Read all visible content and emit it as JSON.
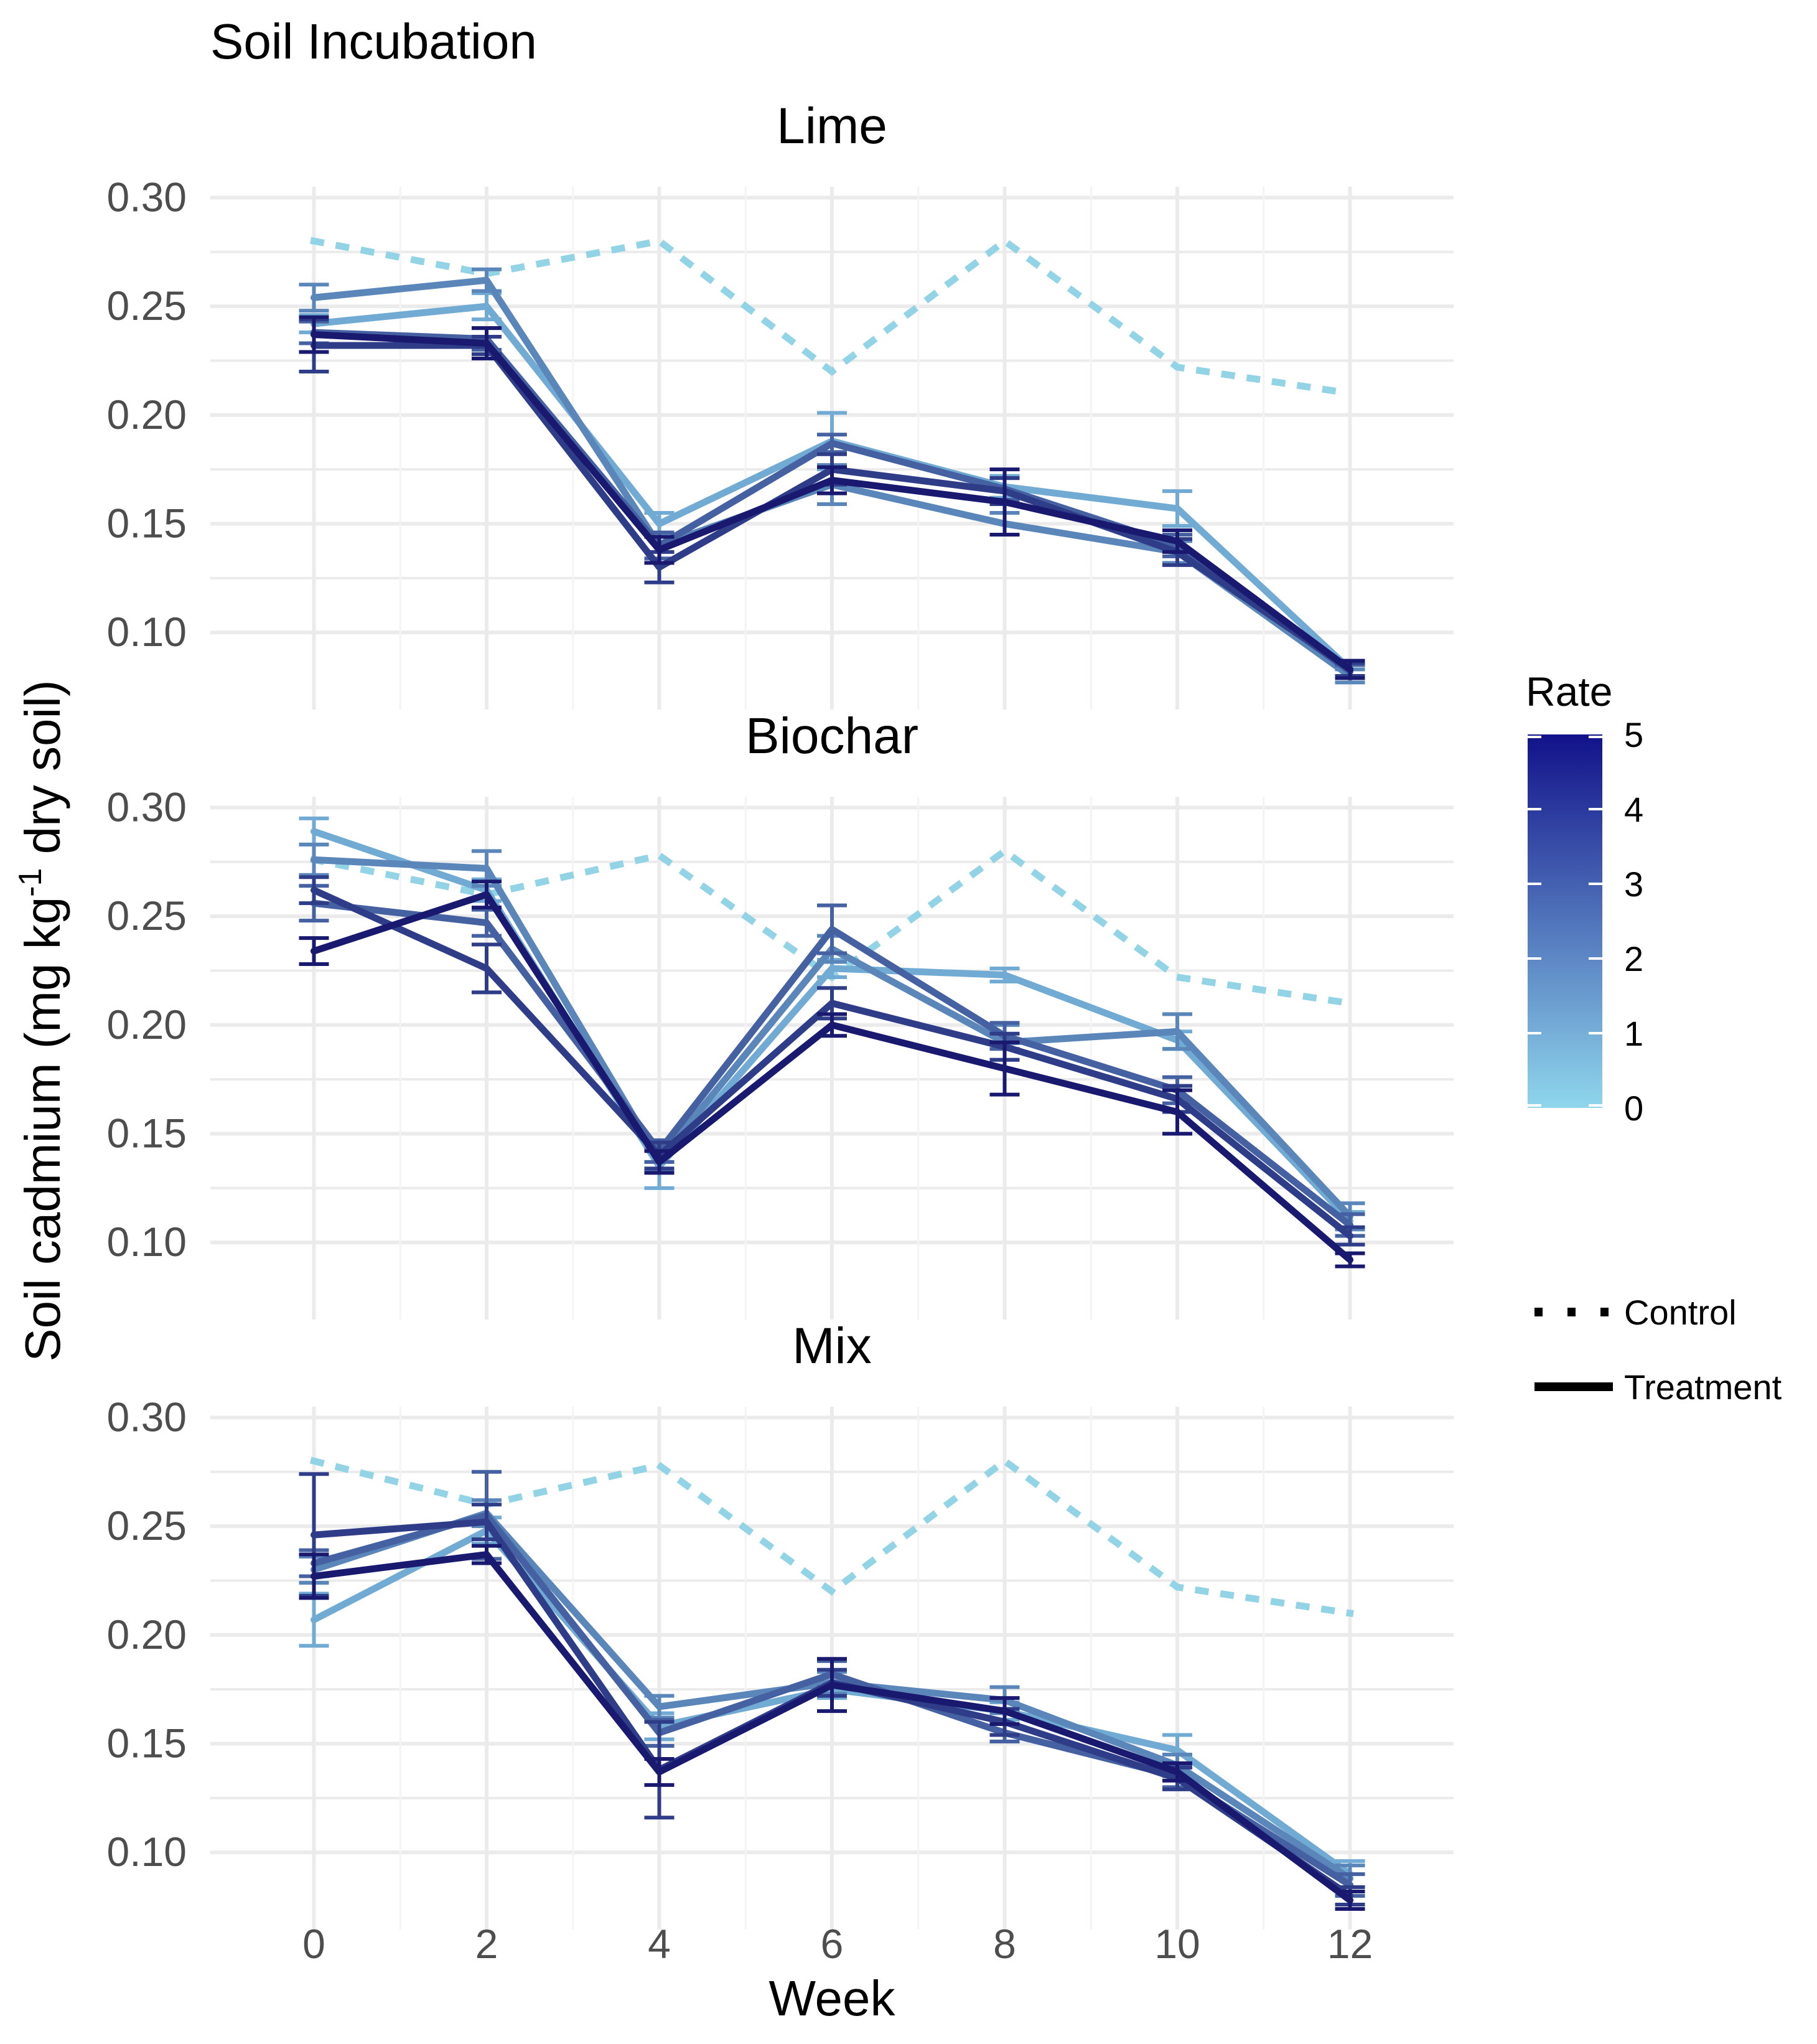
{
  "chart_data": {
    "type": "line",
    "title": "Soil Incubation",
    "xlabel": "Week",
    "ylabel_parts": [
      "Soil cadmium (mg kg",
      "-1",
      " dry soil)"
    ],
    "x_ticks": [
      0,
      2,
      4,
      6,
      8,
      10,
      12
    ],
    "x_tick_labels": [
      "0",
      "2",
      "4",
      "6",
      "8",
      "10",
      "12"
    ],
    "xlim": [
      -1.2,
      13.2
    ],
    "ylim": [
      0.076,
      0.305
    ],
    "y_ticks": [
      0.1,
      0.15,
      0.2,
      0.25,
      0.3
    ],
    "y_tick_labels": [
      "0.10",
      "0.15",
      "0.20",
      "0.25",
      "0.30"
    ],
    "legend": {
      "rate_title": "Rate",
      "rate_labels": [
        "5",
        "4",
        "3",
        "2",
        "1",
        "0"
      ],
      "rate_colors": [
        "#87ceeb",
        "#191970"
      ],
      "line_types": [
        {
          "label": "Control",
          "style": "dotted"
        },
        {
          "label": "Treatment",
          "style": "solid"
        }
      ]
    },
    "control_color": "#93d3e6",
    "panels": [
      {
        "name": "Lime",
        "control": [
          0.28,
          0.265,
          0.28,
          0.22,
          0.28,
          0.222,
          0.21
        ],
        "series": [
          {
            "rate": 1,
            "values": [
              0.242,
              0.25,
              0.15,
              0.188,
              0.167,
              0.157,
              0.083
            ],
            "errors": [
              0.004,
              0.006,
              0.005,
              0.013,
              0.005,
              0.008,
              0.004
            ]
          },
          {
            "rate": 2,
            "values": [
              0.254,
              0.262,
              0.14,
              0.168,
              0.15,
              0.137,
              0.08
            ],
            "errors": [
              0.006,
              0.005,
              0.006,
              0.009,
              0.005,
              0.005,
              0.003
            ]
          },
          {
            "rate": 3,
            "values": [
              0.238,
              0.235,
              0.14,
              0.187,
              0.166,
              0.14,
              0.082
            ],
            "errors": [
              0.005,
              0.005,
              0.006,
              0.004,
              0.005,
              0.005,
              0.003
            ]
          },
          {
            "rate": 4,
            "values": [
              0.232,
              0.232,
              0.13,
              0.175,
              0.165,
              0.137,
              0.083
            ],
            "errors": [
              0.012,
              0.004,
              0.007,
              0.007,
              0.006,
              0.006,
              0.003
            ]
          },
          {
            "rate": 5,
            "values": [
              0.237,
              0.233,
              0.138,
              0.17,
              0.16,
              0.142,
              0.083
            ],
            "errors": [
              0.008,
              0.007,
              0.006,
              0.006,
              0.015,
              0.005,
              0.004
            ]
          }
        ]
      },
      {
        "name": "Biochar",
        "control": [
          0.276,
          0.26,
          0.278,
          0.222,
          0.28,
          0.222,
          0.21
        ],
        "series": [
          {
            "rate": 1,
            "values": [
              0.289,
              0.262,
              0.135,
              0.226,
              0.223,
              0.193,
              0.11
            ],
            "errors": [
              0.006,
              0.005,
              0.01,
              0.004,
              0.003,
              0.004,
              0.004
            ]
          },
          {
            "rate": 2,
            "values": [
              0.276,
              0.272,
              0.138,
              0.235,
              0.192,
              0.197,
              0.112
            ],
            "errors": [
              0.007,
              0.008,
              0.005,
              0.006,
              0.008,
              0.008,
              0.006
            ]
          },
          {
            "rate": 3,
            "values": [
              0.256,
              0.247,
              0.142,
              0.244,
              0.195,
              0.17,
              0.108
            ],
            "errors": [
              0.008,
              0.006,
              0.005,
              0.011,
              0.006,
              0.006,
              0.005
            ]
          },
          {
            "rate": 4,
            "values": [
              0.262,
              0.226,
              0.14,
              0.21,
              0.19,
              0.166,
              0.103
            ],
            "errors": [
              0.006,
              0.011,
              0.006,
              0.007,
              0.006,
              0.006,
              0.004
            ]
          },
          {
            "rate": 5,
            "values": [
              0.234,
              0.26,
              0.137,
              0.2,
              0.18,
              0.16,
              0.092
            ],
            "errors": [
              0.006,
              0.006,
              0.005,
              0.005,
              0.012,
              0.01,
              0.003
            ]
          }
        ]
      },
      {
        "name": "Mix",
        "control": [
          0.28,
          0.26,
          0.278,
          0.22,
          0.28,
          0.222,
          0.21
        ],
        "series": [
          {
            "rate": 1,
            "values": [
              0.207,
              0.248,
              0.158,
              0.175,
              0.165,
              0.147,
              0.09
            ],
            "errors": [
              0.012,
              0.006,
              0.006,
              0.004,
              0.004,
              0.007,
              0.006
            ]
          },
          {
            "rate": 2,
            "values": [
              0.23,
              0.256,
              0.167,
              0.178,
              0.17,
              0.14,
              0.088
            ],
            "errors": [
              0.006,
              0.006,
              0.005,
              0.005,
              0.006,
              0.005,
              0.006
            ]
          },
          {
            "rate": 3,
            "values": [
              0.233,
              0.255,
              0.155,
              0.182,
              0.155,
              0.135,
              0.085
            ],
            "errors": [
              0.006,
              0.02,
              0.006,
              0.006,
              0.004,
              0.005,
              0.005
            ]
          },
          {
            "rate": 4,
            "values": [
              0.246,
              0.252,
              0.138,
              0.178,
              0.16,
              0.134,
              0.08
            ],
            "errors": [
              0.028,
              0.008,
              0.022,
              0.006,
              0.006,
              0.005,
              0.004
            ]
          },
          {
            "rate": 5,
            "values": [
              0.227,
              0.237,
              0.137,
              0.177,
              0.165,
              0.137,
              0.078
            ],
            "errors": [
              0.01,
              0.004,
              0.006,
              0.012,
              0.006,
              0.004,
              0.004
            ]
          }
        ]
      }
    ]
  }
}
